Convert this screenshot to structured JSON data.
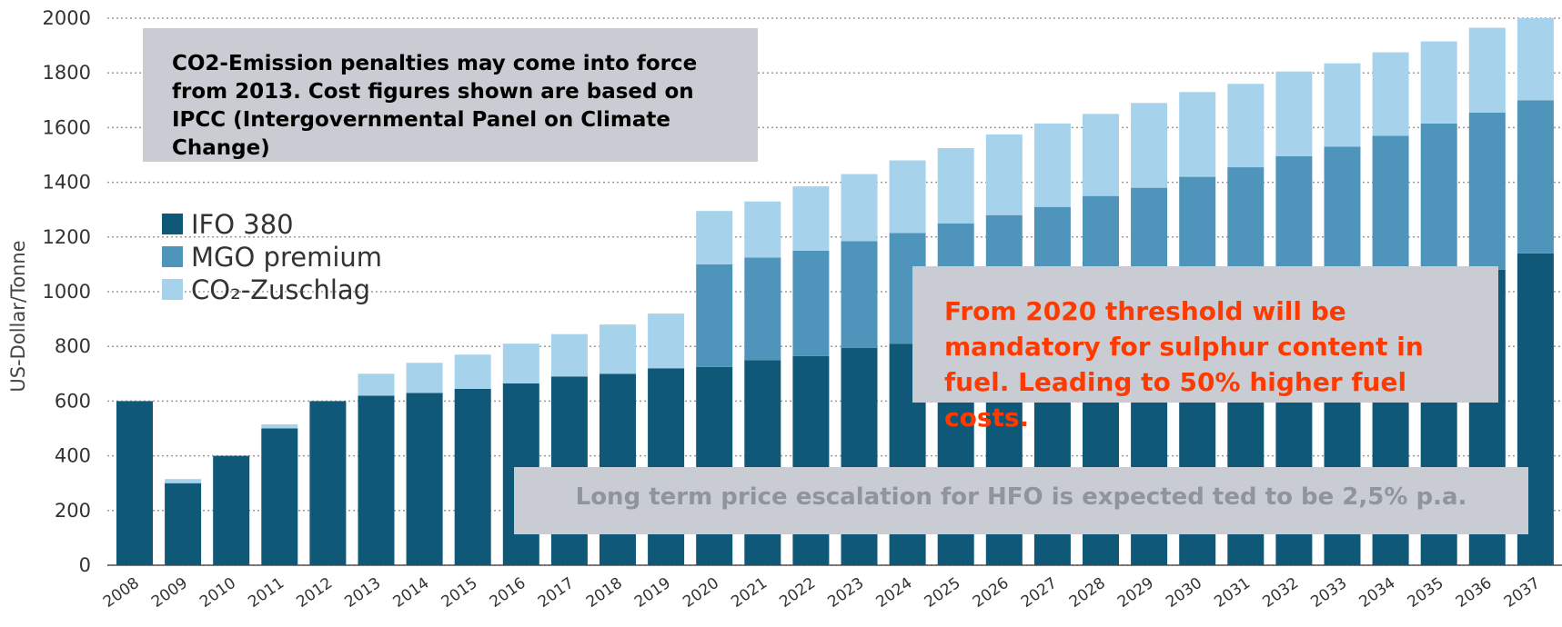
{
  "chart_data": {
    "type": "bar",
    "stacked": true,
    "ylabel": "US-Dollar/Tonne",
    "ylim": [
      0,
      2000
    ],
    "yticks": [
      0,
      200,
      400,
      600,
      800,
      1000,
      1200,
      1400,
      1600,
      1800,
      2000
    ],
    "categories": [
      "2008",
      "2009",
      "2010",
      "2011",
      "2012",
      "2013",
      "2014",
      "2015",
      "2016",
      "2017",
      "2018",
      "2019",
      "2020",
      "2021",
      "2022",
      "2023",
      "2024",
      "2025",
      "2026",
      "2027",
      "2028",
      "2029",
      "2030",
      "2031",
      "2032",
      "2033",
      "2034",
      "2035",
      "2036",
      "2037"
    ],
    "series": [
      {
        "name": "IFO 380",
        "color": "#0f5878",
        "values": [
          600,
          300,
          400,
          500,
          600,
          620,
          630,
          645,
          665,
          690,
          700,
          720,
          725,
          750,
          765,
          795,
          810,
          830,
          850,
          870,
          890,
          910,
          930,
          955,
          975,
          1000,
          1025,
          1050,
          1080,
          1140
        ]
      },
      {
        "name": "MGO premium",
        "color": "#4f95bb",
        "values": [
          0,
          0,
          0,
          0,
          0,
          0,
          0,
          0,
          0,
          0,
          0,
          0,
          375,
          375,
          385,
          390,
          405,
          420,
          430,
          440,
          460,
          470,
          490,
          500,
          520,
          530,
          545,
          565,
          575,
          560
        ]
      },
      {
        "name": "CO₂-Zuschlag",
        "color": "#a6d3eb",
        "values": [
          0,
          15,
          0,
          15,
          0,
          80,
          110,
          125,
          145,
          155,
          180,
          200,
          195,
          205,
          235,
          245,
          265,
          275,
          295,
          305,
          300,
          310,
          310,
          305,
          310,
          305,
          305,
          300,
          310,
          300
        ]
      }
    ],
    "grid": true,
    "legend": "top-left"
  },
  "annotations": {
    "note1": "CO2-Emission penalties may come into force from 2013. Cost figures shown are based on IPCC (Intergovernmental Panel on Climate Change)",
    "note2": "From 2020 threshold will be mandatory for sulphur content in fuel. Leading to 50% higher fuel costs.",
    "note3": "Long term price escalation for HFO is expected ted to be 2,5% p.a."
  }
}
